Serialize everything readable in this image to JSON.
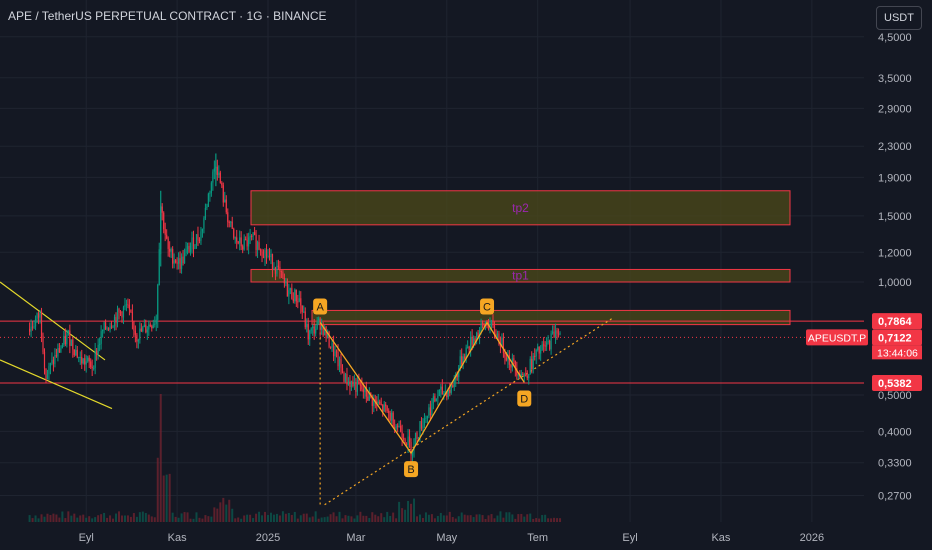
{
  "header": {
    "title": "APE / TetherUS PERPETUAL CONTRACT · 1G · BINANCE",
    "currency": "USDT"
  },
  "colors": {
    "background": "#141823",
    "up": "#089981",
    "down": "#f23645",
    "zone_border": "#f23645",
    "zone_fill": "#4c4a1a",
    "pattern": "#f5a623",
    "trendline": "#e3d82b",
    "label_text": "#9c27b0"
  },
  "chart_data": {
    "type": "candlestick",
    "yscale": "log",
    "ylim": [
      0.24,
      4.8
    ],
    "x_ticks": [
      "Eyl",
      "Kas",
      "2025",
      "Mar",
      "May",
      "Tem",
      "Eyl",
      "Kas",
      "2026"
    ],
    "y_ticks": [
      "4,5000",
      "3,5000",
      "2,9000",
      "2,3000",
      "1,9000",
      "1,5000",
      "1,2000",
      "1,0000",
      "0,5000",
      "0,4000",
      "0,3300",
      "0,2700"
    ],
    "price_labels": [
      {
        "name": "level",
        "value": 0.7864,
        "text": "0,7864",
        "color": "#f23645"
      },
      {
        "name": "last",
        "value": 0.7122,
        "text": "0,7122",
        "color": "#f23645"
      },
      {
        "name": "support",
        "value": 0.5382,
        "text": "0,5382",
        "color": "#f23645"
      }
    ],
    "symbol_tag": "APEUSDT.P",
    "countdown": "13:44:06",
    "horizontal_lines": [
      0.7864,
      0.5382
    ],
    "zones": [
      {
        "label": "tp2",
        "low": 1.42,
        "high": 1.75
      },
      {
        "label": "tp1",
        "low": 1.0,
        "high": 1.08
      },
      {
        "label": "",
        "low": 0.77,
        "high": 0.84
      }
    ],
    "pattern_points": [
      {
        "label": "A",
        "date": "2025-02-05",
        "price": 0.78
      },
      {
        "label": "B",
        "date": "2025-04-07",
        "price": 0.35
      },
      {
        "label": "C",
        "date": "2025-05-28",
        "price": 0.78
      },
      {
        "label": "D",
        "date": "2025-06-22",
        "price": 0.54
      }
    ],
    "series": [
      {
        "date": "2024-07-25",
        "price": 0.75
      },
      {
        "date": "2024-08-01",
        "price": 0.82
      },
      {
        "date": "2024-08-05",
        "price": 0.56
      },
      {
        "date": "2024-08-12",
        "price": 0.64
      },
      {
        "date": "2024-08-20",
        "price": 0.72
      },
      {
        "date": "2024-08-28",
        "price": 0.62
      },
      {
        "date": "2024-09-05",
        "price": 0.6
      },
      {
        "date": "2024-09-12",
        "price": 0.74
      },
      {
        "date": "2024-09-20",
        "price": 0.8
      },
      {
        "date": "2024-09-28",
        "price": 0.86
      },
      {
        "date": "2024-10-05",
        "price": 0.72
      },
      {
        "date": "2024-10-12",
        "price": 0.76
      },
      {
        "date": "2024-10-18",
        "price": 0.8
      },
      {
        "date": "2024-10-21",
        "price": 1.6
      },
      {
        "date": "2024-10-26",
        "price": 1.2
      },
      {
        "date": "2024-11-03",
        "price": 1.12
      },
      {
        "date": "2024-11-10",
        "price": 1.25
      },
      {
        "date": "2024-11-17",
        "price": 1.35
      },
      {
        "date": "2024-11-22",
        "price": 1.7
      },
      {
        "date": "2024-11-27",
        "price": 2.1
      },
      {
        "date": "2024-12-03",
        "price": 1.6
      },
      {
        "date": "2024-12-09",
        "price": 1.3
      },
      {
        "date": "2024-12-15",
        "price": 1.25
      },
      {
        "date": "2024-12-22",
        "price": 1.3
      },
      {
        "date": "2024-12-30",
        "price": 1.2
      },
      {
        "date": "2025-01-06",
        "price": 1.1
      },
      {
        "date": "2025-01-14",
        "price": 0.95
      },
      {
        "date": "2025-01-22",
        "price": 0.9
      },
      {
        "date": "2025-01-28",
        "price": 0.72
      },
      {
        "date": "2025-02-05",
        "price": 0.78
      },
      {
        "date": "2025-02-12",
        "price": 0.68
      },
      {
        "date": "2025-02-22",
        "price": 0.55
      },
      {
        "date": "2025-03-04",
        "price": 0.52
      },
      {
        "date": "2025-03-13",
        "price": 0.48
      },
      {
        "date": "2025-03-22",
        "price": 0.45
      },
      {
        "date": "2025-04-01",
        "price": 0.4
      },
      {
        "date": "2025-04-07",
        "price": 0.36
      },
      {
        "date": "2025-04-14",
        "price": 0.42
      },
      {
        "date": "2025-04-25",
        "price": 0.5
      },
      {
        "date": "2025-05-04",
        "price": 0.52
      },
      {
        "date": "2025-05-12",
        "price": 0.64
      },
      {
        "date": "2025-05-20",
        "price": 0.72
      },
      {
        "date": "2025-05-28",
        "price": 0.78
      },
      {
        "date": "2025-06-04",
        "price": 0.72
      },
      {
        "date": "2025-06-12",
        "price": 0.62
      },
      {
        "date": "2025-06-22",
        "price": 0.56
      },
      {
        "date": "2025-06-30",
        "price": 0.64
      },
      {
        "date": "2025-07-08",
        "price": 0.68
      },
      {
        "date": "2025-07-14",
        "price": 0.76
      },
      {
        "date": "2025-07-16",
        "price": 0.7122
      }
    ]
  }
}
